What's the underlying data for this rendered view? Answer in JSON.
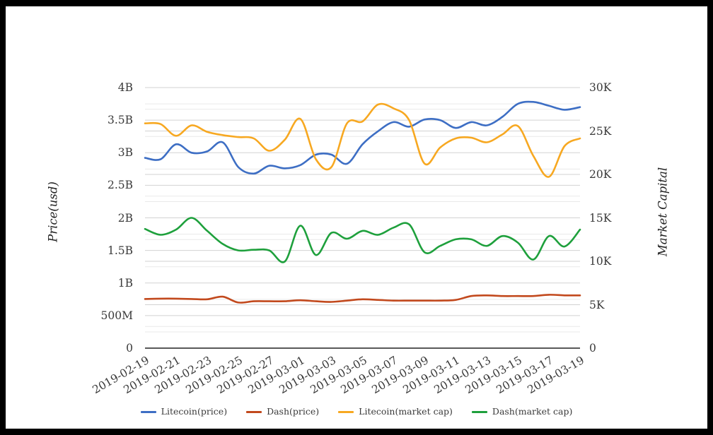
{
  "frame": {
    "border_color": "#000000",
    "background": "#ffffff"
  },
  "chart_data": {
    "type": "line",
    "smooth": true,
    "x": [
      "2019-02-19",
      "2019-02-20",
      "2019-02-21",
      "2019-02-22",
      "2019-02-23",
      "2019-02-24",
      "2019-02-25",
      "2019-02-26",
      "2019-02-27",
      "2019-02-28",
      "2019-03-01",
      "2019-03-02",
      "2019-03-03",
      "2019-03-04",
      "2019-03-05",
      "2019-03-06",
      "2019-03-07",
      "2019-03-08",
      "2019-03-09",
      "2019-03-10",
      "2019-03-11",
      "2019-03-12",
      "2019-03-13",
      "2019-03-14",
      "2019-03-15",
      "2019-03-16",
      "2019-03-17",
      "2019-03-18",
      "2019-03-19"
    ],
    "x_tick_labels": [
      "2019-02-19",
      "2019-02-21",
      "2019-02-23",
      "2019-02-25",
      "2019-02-27",
      "2019-03-01",
      "2019-03-03",
      "2019-03-05",
      "2019-03-07",
      "2019-03-09",
      "2019-03-11",
      "2019-03-13",
      "2019-03-15",
      "2019-03-17",
      "2019-03-19"
    ],
    "left_axis": {
      "title": "Price(usd)",
      "max": 4,
      "unit": "billions",
      "tick_labels": [
        "0",
        "500M",
        "1B",
        "1.5B",
        "2B",
        "2.5B",
        "3B",
        "3.5B",
        "4B"
      ]
    },
    "right_axis": {
      "title": "Market Capital",
      "max": 30,
      "unit": "thousands",
      "tick_labels": [
        "0",
        "5K",
        "10K",
        "15K",
        "20K",
        "25K",
        "30K"
      ]
    },
    "grid": {
      "major_color": "#d2d2d2",
      "minor_color": "#e9e9e9",
      "axis_line_color": "#222222"
    },
    "legend_position": "bottom-center",
    "series": [
      {
        "name": "Litecoin(price)",
        "color": "#3D6EC4",
        "values": [
          2.92,
          2.9,
          3.13,
          3.0,
          3.02,
          3.16,
          2.78,
          2.68,
          2.8,
          2.76,
          2.81,
          2.97,
          2.97,
          2.83,
          3.13,
          3.33,
          3.47,
          3.4,
          3.51,
          3.5,
          3.38,
          3.47,
          3.42,
          3.55,
          3.75,
          3.78,
          3.72,
          3.66,
          3.7
        ]
      },
      {
        "name": "Dash(price)",
        "color": "#C2491D",
        "values": [
          0.755,
          0.76,
          0.76,
          0.755,
          0.75,
          0.79,
          0.7,
          0.72,
          0.72,
          0.72,
          0.735,
          0.72,
          0.71,
          0.73,
          0.75,
          0.74,
          0.73,
          0.73,
          0.73,
          0.73,
          0.74,
          0.8,
          0.81,
          0.8,
          0.8,
          0.8,
          0.82,
          0.81,
          0.81
        ]
      },
      {
        "name": "Litecoin(market cap)",
        "color": "#F7A821",
        "values": [
          3.45,
          3.44,
          3.26,
          3.42,
          3.32,
          3.27,
          3.24,
          3.22,
          3.03,
          3.2,
          3.52,
          2.9,
          2.78,
          3.45,
          3.48,
          3.74,
          3.68,
          3.5,
          2.83,
          3.08,
          3.22,
          3.23,
          3.16,
          3.28,
          3.41,
          2.95,
          2.63,
          3.1,
          3.22
        ]
      },
      {
        "name": "Dash(market cap)",
        "color": "#1EA03C",
        "values": [
          1.83,
          1.74,
          1.82,
          2.0,
          1.8,
          1.6,
          1.5,
          1.51,
          1.5,
          1.33,
          1.88,
          1.43,
          1.77,
          1.68,
          1.8,
          1.74,
          1.85,
          1.9,
          1.47,
          1.57,
          1.67,
          1.67,
          1.57,
          1.72,
          1.62,
          1.36,
          1.72,
          1.56,
          1.82
        ]
      }
    ]
  }
}
